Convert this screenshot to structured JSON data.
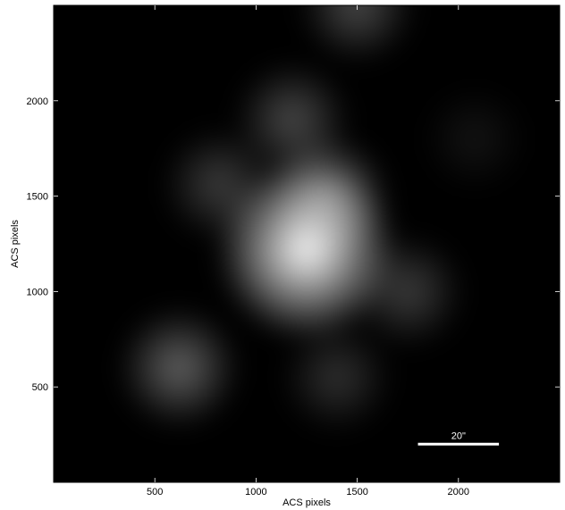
{
  "chart_data": {
    "type": "heatmap",
    "title": "",
    "xlabel": "ACS pixels",
    "ylabel": "ACS pixels",
    "xlim": [
      0,
      2500
    ],
    "ylim": [
      0,
      2500
    ],
    "x_ticks": [
      500,
      1000,
      1500,
      2000
    ],
    "y_ticks": [
      500,
      1000,
      1500,
      2000
    ],
    "colormap": "grayscale",
    "background_color": "#000000",
    "grid": false,
    "legend": "none",
    "emission_peaks": [
      {
        "x": 1250,
        "y": 1220,
        "intensity": 1.0
      },
      {
        "x": 1350,
        "y": 1500,
        "intensity": 0.45
      },
      {
        "x": 1180,
        "y": 1900,
        "intensity": 0.3
      },
      {
        "x": 820,
        "y": 1560,
        "intensity": 0.25
      },
      {
        "x": 1750,
        "y": 1000,
        "intensity": 0.25
      },
      {
        "x": 620,
        "y": 600,
        "intensity": 0.4
      },
      {
        "x": 1400,
        "y": 550,
        "intensity": 0.2
      },
      {
        "x": 1500,
        "y": 2500,
        "intensity": 0.3
      },
      {
        "x": 2080,
        "y": 1800,
        "intensity": 0.08
      }
    ],
    "scale_bar": {
      "label": "20\"",
      "x_start": 1800,
      "x_end": 2200,
      "y": 200,
      "color": "#ffffff"
    }
  }
}
